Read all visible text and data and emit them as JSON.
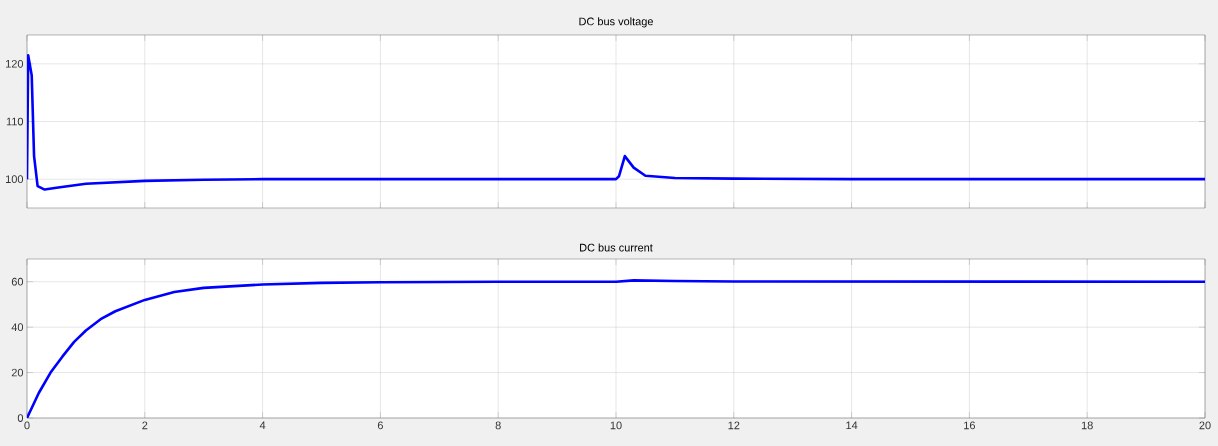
{
  "chart_data": [
    {
      "type": "line",
      "title": "DC bus voltage",
      "xlim": [
        0,
        20
      ],
      "ylim": [
        95,
        125
      ],
      "xticks": [
        0,
        2,
        4,
        6,
        8,
        10,
        12,
        14,
        16,
        18,
        20
      ],
      "yticks": [
        100,
        110,
        120
      ],
      "grid": true,
      "tick_labels": "y",
      "series": [
        {
          "color": "#0000ff",
          "x": [
            0,
            0.02,
            0.08,
            0.12,
            0.18,
            0.3,
            0.5,
            1,
            2,
            3,
            4,
            10,
            10.05,
            10.15,
            10.3,
            10.5,
            11,
            12,
            14,
            20
          ],
          "values": [
            100,
            121.5,
            118,
            104,
            98.8,
            98.2,
            98.5,
            99.2,
            99.7,
            99.9,
            100,
            100,
            100.5,
            104,
            102,
            100.6,
            100.2,
            100.1,
            100,
            100
          ]
        }
      ]
    },
    {
      "type": "line",
      "title": "DC bus current",
      "xlim": [
        0,
        20
      ],
      "ylim": [
        0,
        70
      ],
      "xticks": [
        0,
        2,
        4,
        6,
        8,
        10,
        12,
        14,
        16,
        18,
        20
      ],
      "yticks": [
        0,
        20,
        40,
        60
      ],
      "grid": true,
      "series": [
        {
          "color": "#0000ff",
          "x": [
            0,
            0.2,
            0.4,
            0.6,
            0.8,
            1,
            1.25,
            1.5,
            2,
            2.5,
            3,
            4,
            5,
            6,
            8,
            10,
            10.3,
            11,
            12,
            20
          ],
          "values": [
            0,
            11,
            20,
            27,
            33.5,
            38.5,
            43.5,
            47,
            52,
            55.5,
            57.3,
            58.8,
            59.5,
            59.8,
            60,
            60,
            60.6,
            60.3,
            60.1,
            60
          ]
        }
      ]
    }
  ]
}
